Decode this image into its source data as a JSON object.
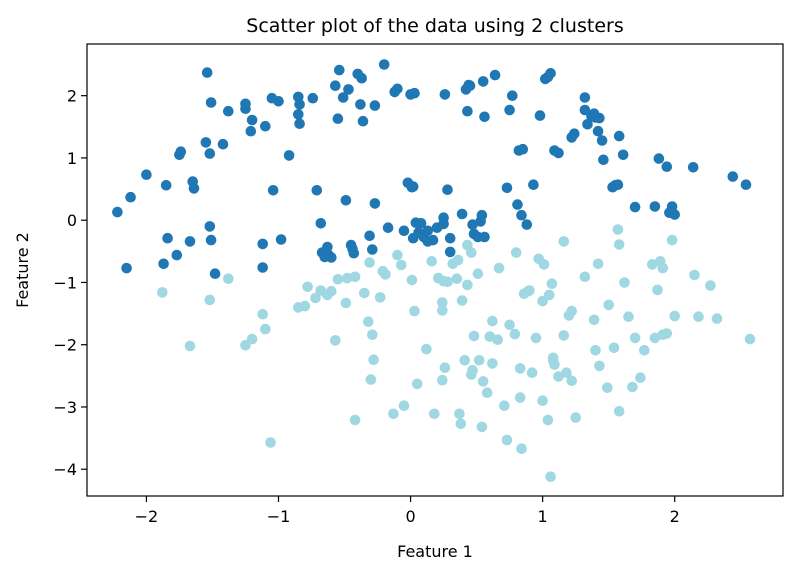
{
  "chart_data": {
    "type": "scatter",
    "title": "Scatter plot of the data using 2 clusters",
    "xlabel": "Feature 1",
    "ylabel": "Feature 2",
    "xlim": [
      -2.45,
      2.82
    ],
    "ylim": [
      -4.43,
      2.83
    ],
    "xticks": [
      -2,
      -1,
      0,
      1,
      2
    ],
    "yticks": [
      -4,
      -3,
      -2,
      -1,
      0,
      1,
      2
    ],
    "grid": false,
    "colors": {
      "cluster_0": "#1f77b4",
      "cluster_1": "#9fd8e2"
    },
    "series": [
      {
        "points": [
          [
            -2.22,
            0.13
          ],
          [
            -2.15,
            -0.77
          ],
          [
            -2.12,
            0.37
          ],
          [
            -2.0,
            0.73
          ],
          [
            -1.87,
            -0.7
          ],
          [
            -1.84,
            -0.29
          ],
          [
            -1.85,
            0.56
          ],
          [
            -1.77,
            -0.56
          ],
          [
            -1.75,
            1.05
          ],
          [
            -1.74,
            1.1
          ],
          [
            -1.67,
            -0.34
          ],
          [
            -1.65,
            0.62
          ],
          [
            -1.64,
            0.51
          ],
          [
            -1.54,
            2.37
          ],
          [
            -1.55,
            1.25
          ],
          [
            -1.52,
            1.07
          ],
          [
            -1.52,
            -0.1
          ],
          [
            -1.51,
            1.89
          ],
          [
            -1.51,
            -0.32
          ],
          [
            -1.48,
            -0.86
          ],
          [
            -1.42,
            1.22
          ],
          [
            -1.38,
            1.75
          ],
          [
            -1.25,
            1.79
          ],
          [
            -1.25,
            1.87
          ],
          [
            -1.21,
            1.43
          ],
          [
            -1.2,
            1.61
          ],
          [
            -1.12,
            -0.38
          ],
          [
            -1.12,
            -0.76
          ],
          [
            -1.1,
            1.51
          ],
          [
            -1.05,
            1.96
          ],
          [
            -1.04,
            0.48
          ],
          [
            -1.0,
            1.91
          ],
          [
            -0.98,
            -0.31
          ],
          [
            -0.92,
            1.04
          ],
          [
            -0.85,
            1.98
          ],
          [
            -0.84,
            1.86
          ],
          [
            -0.85,
            1.7
          ],
          [
            -0.84,
            1.55
          ],
          [
            -0.74,
            1.96
          ],
          [
            -0.71,
            0.48
          ],
          [
            -0.68,
            -0.05
          ],
          [
            -0.67,
            -0.52
          ],
          [
            -0.65,
            -0.59
          ],
          [
            -0.63,
            -0.43
          ],
          [
            -0.62,
            -0.56
          ],
          [
            -0.6,
            -0.6
          ],
          [
            -0.57,
            2.16
          ],
          [
            -0.55,
            1.63
          ],
          [
            -0.54,
            2.41
          ],
          [
            -0.51,
            1.97
          ],
          [
            -0.49,
            0.32
          ],
          [
            -0.47,
            2.1
          ],
          [
            -0.45,
            -0.4
          ],
          [
            -0.44,
            -0.46
          ],
          [
            -0.43,
            -0.53
          ],
          [
            -0.4,
            2.35
          ],
          [
            -0.37,
            2.28
          ],
          [
            -0.38,
            1.86
          ],
          [
            -0.36,
            1.59
          ],
          [
            -0.31,
            -0.25
          ],
          [
            -0.29,
            -0.47
          ],
          [
            -0.27,
            0.27
          ],
          [
            -0.27,
            1.84
          ],
          [
            -0.2,
            2.5
          ],
          [
            -0.17,
            -0.12
          ],
          [
            -0.12,
            2.06
          ],
          [
            -0.1,
            2.11
          ],
          [
            -0.05,
            -0.17
          ],
          [
            -0.02,
            0.6
          ],
          [
            0.0,
            2.02
          ],
          [
            0.01,
            0.53
          ],
          [
            0.02,
            0.54
          ],
          [
            0.02,
            -0.29
          ],
          [
            0.03,
            2.04
          ],
          [
            0.04,
            -0.04
          ],
          [
            0.06,
            -0.2
          ],
          [
            0.08,
            -0.05
          ],
          [
            0.1,
            -0.27
          ],
          [
            0.13,
            -0.34
          ],
          [
            0.13,
            -0.17
          ],
          [
            0.17,
            -0.32
          ],
          [
            0.2,
            -0.12
          ],
          [
            0.25,
            -0.06
          ],
          [
            0.25,
            0.04
          ],
          [
            0.26,
            2.02
          ],
          [
            0.28,
            0.49
          ],
          [
            0.3,
            -0.29
          ],
          [
            0.3,
            -0.51
          ],
          [
            0.39,
            0.1
          ],
          [
            0.42,
            2.1
          ],
          [
            0.43,
            1.75
          ],
          [
            0.44,
            2.17
          ],
          [
            0.45,
            2.16
          ],
          [
            0.47,
            -0.07
          ],
          [
            0.48,
            -0.22
          ],
          [
            0.51,
            -0.27
          ],
          [
            0.53,
            -0.02
          ],
          [
            0.54,
            0.08
          ],
          [
            0.55,
            2.23
          ],
          [
            0.56,
            -0.27
          ],
          [
            0.56,
            1.66
          ],
          [
            0.64,
            2.33
          ],
          [
            0.73,
            0.52
          ],
          [
            0.75,
            1.77
          ],
          [
            0.77,
            2.0
          ],
          [
            0.81,
            0.25
          ],
          [
            0.82,
            1.12
          ],
          [
            0.84,
            0.08
          ],
          [
            0.85,
            1.14
          ],
          [
            0.88,
            -0.07
          ],
          [
            0.93,
            0.57
          ],
          [
            0.98,
            1.68
          ],
          [
            1.02,
            2.27
          ],
          [
            1.04,
            2.3
          ],
          [
            1.06,
            2.36
          ],
          [
            1.09,
            1.12
          ],
          [
            1.12,
            1.08
          ],
          [
            1.22,
            1.33
          ],
          [
            1.24,
            1.39
          ],
          [
            1.32,
            1.97
          ],
          [
            1.32,
            1.77
          ],
          [
            1.34,
            1.54
          ],
          [
            1.37,
            1.67
          ],
          [
            1.39,
            1.71
          ],
          [
            1.4,
            1.65
          ],
          [
            1.42,
            1.43
          ],
          [
            1.43,
            1.64
          ],
          [
            1.45,
            1.28
          ],
          [
            1.46,
            0.97
          ],
          [
            1.53,
            0.53
          ],
          [
            1.55,
            0.56
          ],
          [
            1.57,
            0.57
          ],
          [
            1.58,
            1.35
          ],
          [
            1.61,
            1.05
          ],
          [
            1.7,
            0.21
          ],
          [
            1.85,
            0.22
          ],
          [
            1.88,
            0.99
          ],
          [
            1.94,
            0.86
          ],
          [
            1.98,
            0.22
          ],
          [
            2.0,
            0.09
          ],
          [
            2.14,
            0.85
          ],
          [
            2.44,
            0.7
          ],
          [
            2.54,
            0.57
          ],
          [
            1.96,
            0.12
          ]
        ]
      },
      {
        "points": [
          [
            -1.88,
            -1.16
          ],
          [
            -1.67,
            -2.02
          ],
          [
            -1.52,
            -1.28
          ],
          [
            -1.38,
            -0.94
          ],
          [
            -1.25,
            -2.01
          ],
          [
            -1.2,
            -1.91
          ],
          [
            -1.12,
            -1.51
          ],
          [
            -1.1,
            -1.75
          ],
          [
            -1.06,
            -3.57
          ],
          [
            -0.85,
            -1.4
          ],
          [
            -0.8,
            -1.38
          ],
          [
            -0.78,
            -1.07
          ],
          [
            -0.72,
            -1.25
          ],
          [
            -0.68,
            -1.13
          ],
          [
            -0.63,
            -1.2
          ],
          [
            -0.6,
            -1.14
          ],
          [
            -0.57,
            -1.93
          ],
          [
            -0.55,
            -0.95
          ],
          [
            -0.48,
            -0.93
          ],
          [
            -0.49,
            -1.33
          ],
          [
            -0.42,
            -0.91
          ],
          [
            -0.42,
            -3.21
          ],
          [
            -0.35,
            -1.17
          ],
          [
            -0.32,
            -1.63
          ],
          [
            -0.31,
            -0.68
          ],
          [
            -0.29,
            -1.84
          ],
          [
            -0.3,
            -2.56
          ],
          [
            -0.28,
            -2.24
          ],
          [
            -0.23,
            -1.24
          ],
          [
            -0.21,
            -0.82
          ],
          [
            -0.19,
            -0.87
          ],
          [
            -0.13,
            -3.11
          ],
          [
            -0.1,
            -0.56
          ],
          [
            -0.07,
            -0.72
          ],
          [
            -0.05,
            -2.98
          ],
          [
            0.01,
            -0.96
          ],
          [
            0.03,
            -1.46
          ],
          [
            0.05,
            -2.63
          ],
          [
            0.12,
            -2.07
          ],
          [
            0.16,
            -0.66
          ],
          [
            0.18,
            -3.11
          ],
          [
            0.21,
            -0.93
          ],
          [
            0.24,
            -1.32
          ],
          [
            0.25,
            -0.98
          ],
          [
            0.24,
            -1.45
          ],
          [
            0.24,
            -2.57
          ],
          [
            0.26,
            -2.37
          ],
          [
            0.28,
            -0.99
          ],
          [
            0.32,
            -0.7
          ],
          [
            0.35,
            -0.94
          ],
          [
            0.36,
            -0.64
          ],
          [
            0.37,
            -3.11
          ],
          [
            0.38,
            -3.27
          ],
          [
            0.39,
            -1.29
          ],
          [
            0.41,
            -2.25
          ],
          [
            0.43,
            -1.04
          ],
          [
            0.46,
            -0.52
          ],
          [
            0.46,
            -2.48
          ],
          [
            0.47,
            -2.41
          ],
          [
            0.48,
            -1.86
          ],
          [
            0.51,
            -0.86
          ],
          [
            0.52,
            -2.25
          ],
          [
            0.55,
            -2.59
          ],
          [
            0.54,
            -3.32
          ],
          [
            0.58,
            -2.77
          ],
          [
            0.6,
            -1.87
          ],
          [
            0.62,
            -1.62
          ],
          [
            0.62,
            -2.3
          ],
          [
            0.66,
            -1.92
          ],
          [
            0.67,
            -0.77
          ],
          [
            0.71,
            -2.98
          ],
          [
            0.75,
            -1.68
          ],
          [
            0.73,
            -3.53
          ],
          [
            0.79,
            -1.83
          ],
          [
            0.83,
            -2.38
          ],
          [
            0.83,
            -2.85
          ],
          [
            0.86,
            -1.18
          ],
          [
            0.9,
            -1.13
          ],
          [
            0.92,
            -2.45
          ],
          [
            0.95,
            -1.89
          ],
          [
            1.0,
            -1.3
          ],
          [
            1.0,
            -2.9
          ],
          [
            1.05,
            -1.2
          ],
          [
            1.07,
            -1.02
          ],
          [
            1.08,
            -2.21
          ],
          [
            1.09,
            -2.32
          ],
          [
            1.12,
            -2.51
          ],
          [
            1.16,
            -0.34
          ],
          [
            1.18,
            -2.45
          ],
          [
            1.2,
            -1.53
          ],
          [
            1.22,
            -2.58
          ],
          [
            1.25,
            -3.17
          ],
          [
            1.32,
            -0.91
          ],
          [
            1.39,
            -1.6
          ],
          [
            1.4,
            -2.09
          ],
          [
            1.42,
            -0.7
          ],
          [
            1.43,
            -2.34
          ],
          [
            1.49,
            -2.69
          ],
          [
            1.5,
            -1.36
          ],
          [
            1.54,
            -2.05
          ],
          [
            1.58,
            -0.39
          ],
          [
            1.58,
            -3.07
          ],
          [
            1.62,
            -1.0
          ],
          [
            1.65,
            -1.55
          ],
          [
            1.68,
            -2.68
          ],
          [
            1.7,
            -1.89
          ],
          [
            1.74,
            -2.53
          ],
          [
            1.77,
            -2.09
          ],
          [
            1.85,
            -1.89
          ],
          [
            1.87,
            -1.12
          ],
          [
            1.89,
            -0.66
          ],
          [
            1.91,
            -1.84
          ],
          [
            1.94,
            -1.82
          ],
          [
            1.98,
            -0.32
          ],
          [
            2.0,
            -1.54
          ],
          [
            2.15,
            -0.88
          ],
          [
            2.18,
            -1.55
          ],
          [
            2.27,
            -1.05
          ],
          [
            2.32,
            -1.58
          ],
          [
            2.57,
            -1.91
          ],
          [
            1.06,
            -4.12
          ],
          [
            0.84,
            -3.67
          ],
          [
            1.04,
            -3.21
          ],
          [
            1.91,
            -0.77
          ],
          [
            1.83,
            -0.71
          ],
          [
            0.43,
            -0.4
          ],
          [
            1.57,
            -0.15
          ],
          [
            1.16,
            -1.85
          ],
          [
            1.08,
            -2.25
          ],
          [
            0.97,
            -0.62
          ],
          [
            0.8,
            -0.52
          ],
          [
            0.89,
            -1.14
          ],
          [
            1.22,
            -1.46
          ],
          [
            1.01,
            -0.71
          ]
        ]
      }
    ]
  }
}
